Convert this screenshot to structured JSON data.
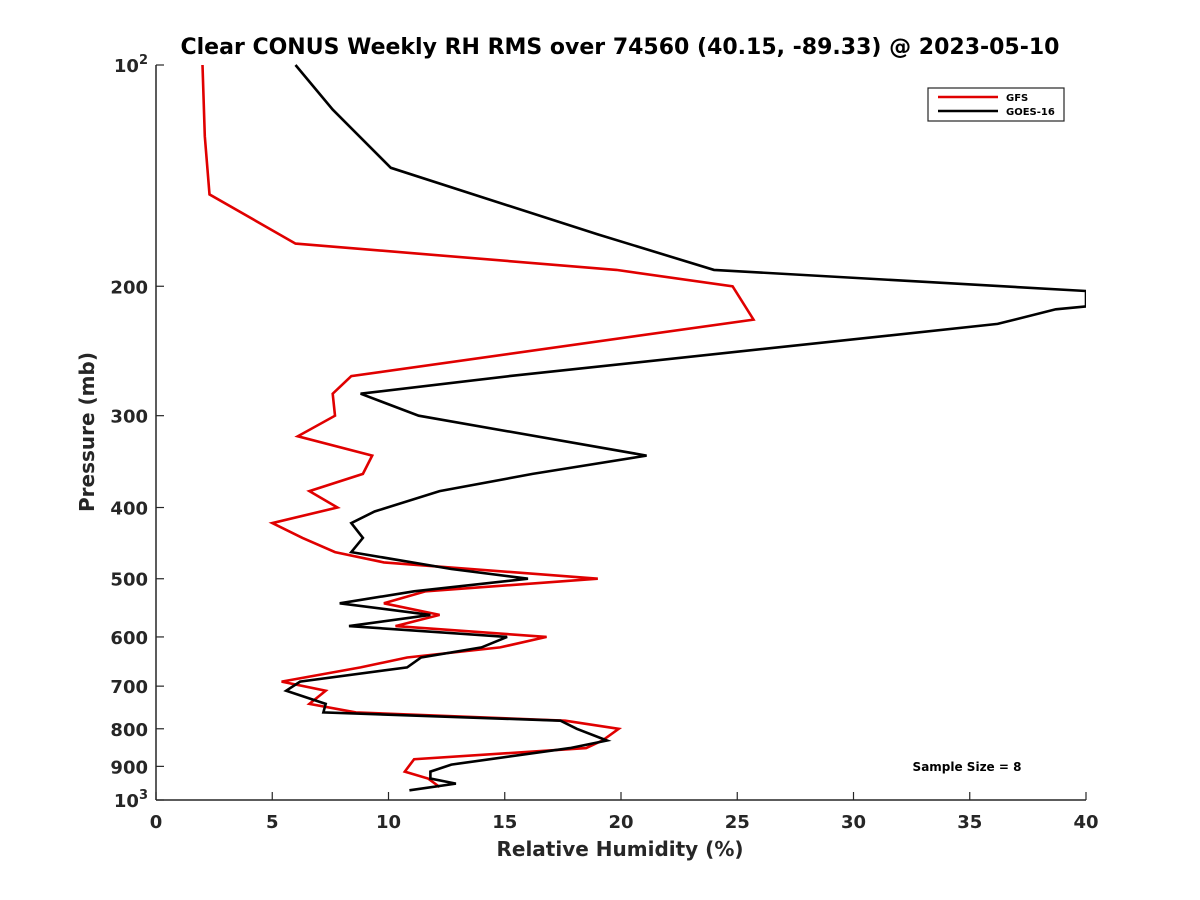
{
  "chart_data": {
    "type": "line",
    "title": "Clear CONUS Weekly RH RMS over 74560 (40.15, -89.33) @ 2023-05-10",
    "xlabel": "Relative Humidity (%)",
    "ylabel": "Pressure (mb)",
    "xlim": [
      0,
      40
    ],
    "ylim": [
      100,
      1000
    ],
    "y_scale": "log",
    "y_reversed": true,
    "grid": false,
    "legend_position": "top-right",
    "x_ticks": [
      0,
      5,
      10,
      15,
      20,
      25,
      30,
      35,
      40
    ],
    "y_ticks": [
      100,
      200,
      300,
      400,
      500,
      600,
      700,
      800,
      900,
      1000
    ],
    "y_tick_labels": [
      "10^2",
      "200",
      "300",
      "400",
      "500",
      "600",
      "700",
      "800",
      "900",
      "10^3"
    ],
    "annotation": "Sample Size = 8",
    "series": [
      {
        "name": "GFS",
        "color": "#e00000",
        "points": [
          [
            2.0,
            100
          ],
          [
            2.1,
            125
          ],
          [
            2.3,
            150
          ],
          [
            6.0,
            175
          ],
          [
            19.8,
            190
          ],
          [
            24.8,
            200
          ],
          [
            25.7,
            222
          ],
          [
            8.4,
            265
          ],
          [
            7.6,
            280
          ],
          [
            7.7,
            300
          ],
          [
            6.1,
            320
          ],
          [
            9.3,
            340
          ],
          [
            8.9,
            360
          ],
          [
            6.6,
            380
          ],
          [
            7.8,
            400
          ],
          [
            5.0,
            420
          ],
          [
            6.3,
            440
          ],
          [
            7.7,
            460
          ],
          [
            9.8,
            475
          ],
          [
            19.0,
            500
          ],
          [
            11.6,
            520
          ],
          [
            9.8,
            540
          ],
          [
            12.2,
            560
          ],
          [
            10.3,
            580
          ],
          [
            16.8,
            600
          ],
          [
            14.8,
            620
          ],
          [
            10.8,
            640
          ],
          [
            8.8,
            660
          ],
          [
            5.4,
            690
          ],
          [
            7.3,
            710
          ],
          [
            6.6,
            740
          ],
          [
            8.6,
            760
          ],
          [
            17.6,
            780
          ],
          [
            19.9,
            800
          ],
          [
            19.2,
            830
          ],
          [
            18.5,
            850
          ],
          [
            11.1,
            880
          ],
          [
            10.7,
            915
          ],
          [
            11.7,
            935
          ],
          [
            12.2,
            960
          ]
        ]
      },
      {
        "name": "GOES-16",
        "color": "#000000",
        "points": [
          [
            6.0,
            100
          ],
          [
            7.6,
            115
          ],
          [
            10.1,
            138
          ],
          [
            19.0,
            170
          ],
          [
            24.0,
            190
          ],
          [
            40.0,
            203
          ],
          [
            40.0,
            213
          ],
          [
            38.7,
            215
          ],
          [
            36.2,
            225
          ],
          [
            15.2,
            265
          ],
          [
            8.8,
            280
          ],
          [
            11.3,
            300
          ],
          [
            21.1,
            340
          ],
          [
            16.2,
            360
          ],
          [
            12.2,
            380
          ],
          [
            9.4,
            405
          ],
          [
            8.4,
            420
          ],
          [
            8.9,
            440
          ],
          [
            8.4,
            460
          ],
          [
            12.7,
            485
          ],
          [
            16.0,
            500
          ],
          [
            11.1,
            520
          ],
          [
            7.9,
            540
          ],
          [
            11.8,
            560
          ],
          [
            8.3,
            580
          ],
          [
            15.1,
            600
          ],
          [
            14.0,
            620
          ],
          [
            11.4,
            640
          ],
          [
            10.8,
            660
          ],
          [
            6.2,
            690
          ],
          [
            5.6,
            710
          ],
          [
            7.3,
            740
          ],
          [
            7.2,
            760
          ],
          [
            17.4,
            780
          ],
          [
            18.1,
            800
          ],
          [
            19.4,
            830
          ],
          [
            17.8,
            850
          ],
          [
            12.7,
            895
          ],
          [
            11.8,
            915
          ],
          [
            11.8,
            935
          ],
          [
            12.9,
            950
          ],
          [
            10.9,
            970
          ]
        ]
      }
    ]
  }
}
